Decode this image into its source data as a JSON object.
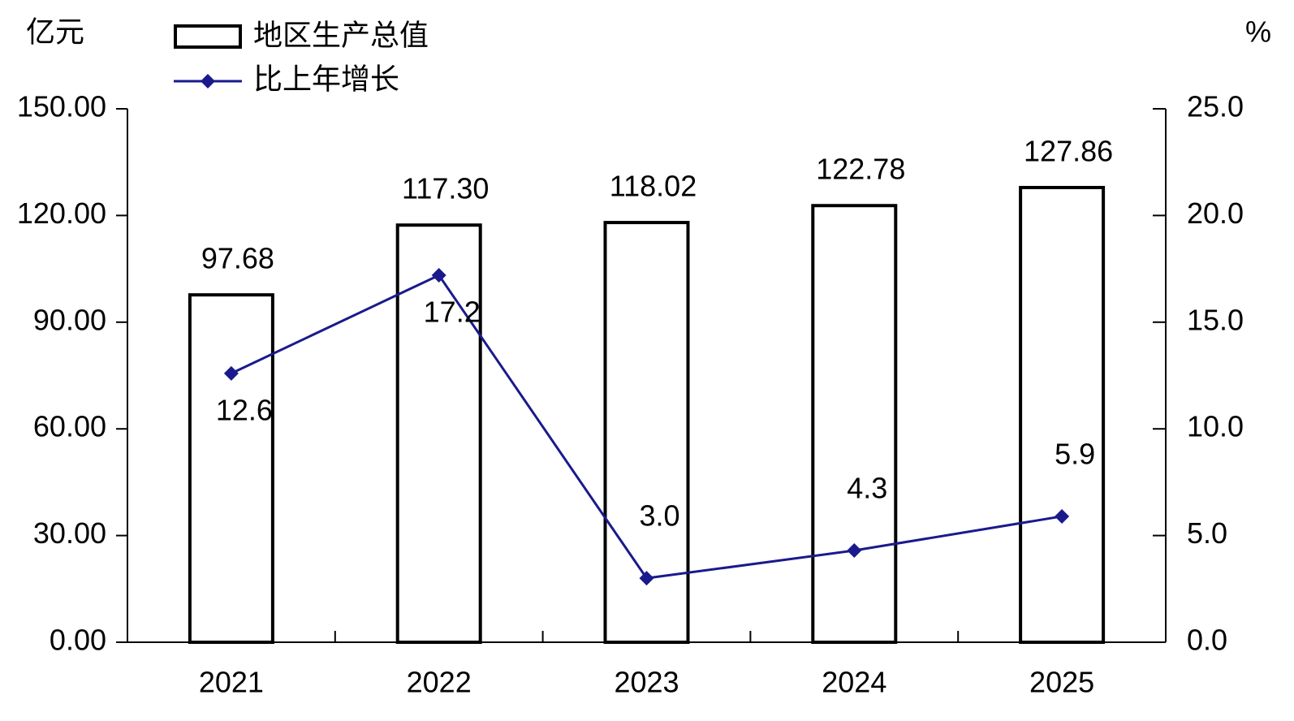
{
  "chart_data": {
    "type": "bar_line",
    "y_unit": "亿元",
    "y2_unit": "%",
    "categories": [
      "2021",
      "2022",
      "2023",
      "2024",
      "2025"
    ],
    "series": [
      {
        "name": "地区生产总值",
        "type": "bar",
        "color": "#ffffff",
        "edge_color": "#000000",
        "values": [
          97.68,
          117.3,
          118.02,
          122.78,
          127.86
        ],
        "value_labels": [
          "97.68",
          "117.30",
          "118.02",
          "122.78",
          "127.86"
        ]
      },
      {
        "name": "比上年增长",
        "type": "line",
        "axis": "y2",
        "color": "#1a1a8c",
        "values": [
          12.6,
          17.2,
          3,
          4.3,
          5.9
        ],
        "value_labels": [
          "12.6",
          "17.2",
          "3.0",
          "4.3",
          "5.9"
        ]
      }
    ],
    "ylim": [
      0,
      150
    ],
    "yticks": [
      {
        "value": 0,
        "label": "0.00"
      },
      {
        "value": 30,
        "label": "30.00"
      },
      {
        "value": 60,
        "label": "60.00"
      },
      {
        "value": 90,
        "label": "90.00"
      },
      {
        "value": 120,
        "label": "120.00"
      },
      {
        "value": 150,
        "label": "150.00"
      }
    ],
    "y2lim": [
      0,
      25
    ],
    "y2ticks": [
      {
        "value": 0,
        "label": "0.0"
      },
      {
        "value": 5,
        "label": "5.0"
      },
      {
        "value": 10,
        "label": "10.0"
      },
      {
        "value": 15,
        "label": "15.0"
      },
      {
        "value": 20,
        "label": "20.0"
      },
      {
        "value": 25,
        "label": "25.0"
      }
    ],
    "grid": false,
    "legend": "top-left"
  }
}
